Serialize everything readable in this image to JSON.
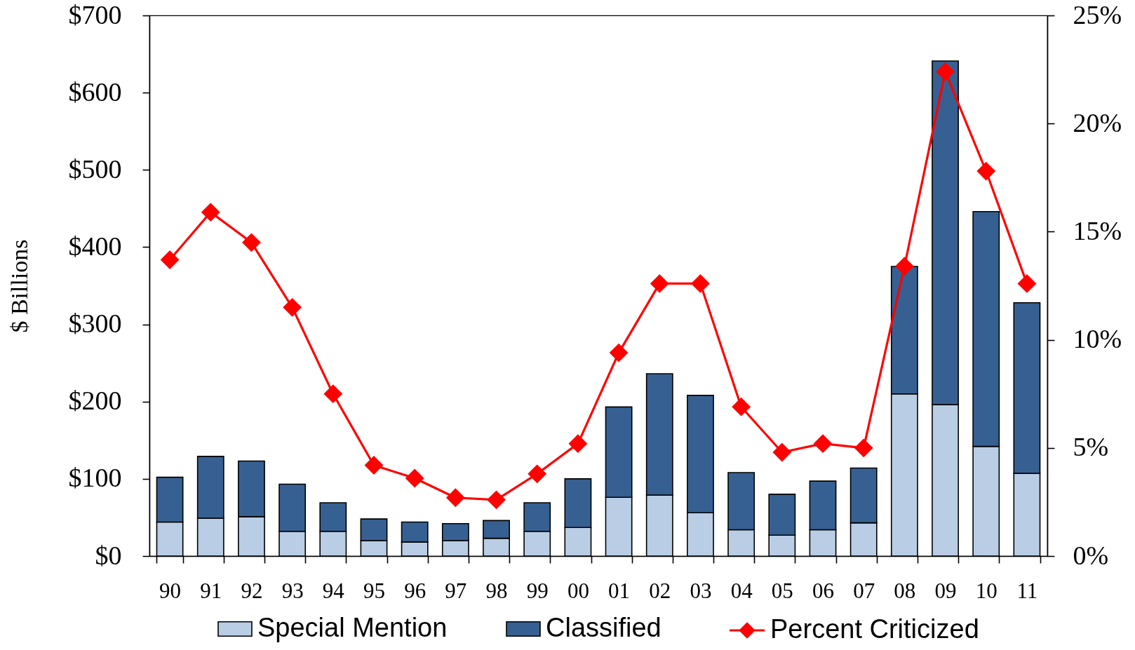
{
  "chart_data": {
    "type": "bar",
    "stacked": true,
    "ylabel": "$ Billions",
    "legend": "bottom",
    "categories": [
      "90",
      "91",
      "92",
      "93",
      "94",
      "95",
      "96",
      "97",
      "98",
      "99",
      "00",
      "01",
      "02",
      "03",
      "04",
      "05",
      "06",
      "07",
      "08",
      "09",
      "10",
      "11"
    ],
    "ylim": [
      0,
      700
    ],
    "yticks": [
      {
        "value": 0,
        "label": "$0"
      },
      {
        "value": 100,
        "label": "$100"
      },
      {
        "value": 200,
        "label": "$200"
      },
      {
        "value": 300,
        "label": "$300"
      },
      {
        "value": 400,
        "label": "$400"
      },
      {
        "value": 500,
        "label": "$500"
      },
      {
        "value": 600,
        "label": "$600"
      },
      {
        "value": 700,
        "label": "$700"
      }
    ],
    "y2lim": [
      0,
      25
    ],
    "y2ticks": [
      {
        "value": 0,
        "label": "0%"
      },
      {
        "value": 5,
        "label": "5%"
      },
      {
        "value": 10,
        "label": "10%"
      },
      {
        "value": 15,
        "label": "15%"
      },
      {
        "value": 20,
        "label": "20%"
      },
      {
        "value": 25,
        "label": "25%"
      }
    ],
    "series": [
      {
        "name": "Special Mention",
        "color": "#b9cde5",
        "values": [
          44,
          49,
          51,
          32,
          32,
          20,
          18,
          20,
          23,
          32,
          37,
          76,
          79,
          56,
          34,
          27,
          34,
          43,
          210,
          196,
          142,
          107
        ]
      },
      {
        "name": "Classified",
        "color": "#376092",
        "values": [
          58,
          80,
          72,
          61,
          37,
          28,
          26,
          22,
          23,
          37,
          63,
          117,
          157,
          152,
          74,
          53,
          63,
          71,
          165,
          445,
          304,
          221
        ]
      },
      {
        "name": "Percent Criticized",
        "type": "line",
        "axis": "y2",
        "marker": "diamond",
        "color": "#ff0000",
        "values": [
          13.7,
          15.9,
          14.5,
          11.5,
          7.5,
          4.2,
          3.6,
          2.7,
          2.6,
          3.8,
          5.2,
          9.4,
          12.6,
          12.6,
          6.9,
          4.8,
          5.2,
          5.0,
          13.4,
          22.4,
          17.8,
          12.6
        ]
      }
    ]
  }
}
